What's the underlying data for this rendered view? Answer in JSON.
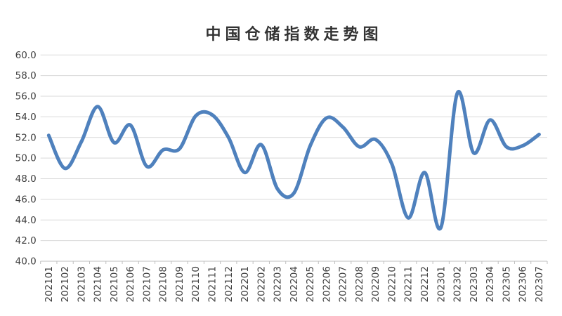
{
  "chart_data": {
    "type": "line",
    "title": "中国仓储指数走势图",
    "categories": [
      "202101",
      "202102",
      "202103",
      "202104",
      "202105",
      "202106",
      "202107",
      "202108",
      "202109",
      "202110",
      "202111",
      "202112",
      "202201",
      "202202",
      "202203",
      "202204",
      "202205",
      "202206",
      "202207",
      "202208",
      "202209",
      "202210",
      "202211",
      "202212",
      "202301",
      "202302",
      "202303",
      "202304",
      "202305",
      "202306",
      "202307"
    ],
    "values": [
      52.2,
      49.0,
      51.6,
      55.0,
      51.5,
      53.2,
      49.2,
      50.8,
      50.9,
      54.1,
      54.2,
      52.0,
      48.6,
      51.3,
      47.0,
      46.6,
      51.2,
      53.9,
      53.0,
      51.1,
      51.8,
      49.4,
      44.2,
      48.6,
      43.3,
      56.3,
      50.5,
      53.7,
      51.1,
      51.2,
      52.3
    ],
    "xlabel": "",
    "ylabel": "",
    "ylim": [
      40,
      60
    ],
    "ytick_step": 2,
    "ytick_labels": [
      "40.0",
      "42.0",
      "44.0",
      "46.0",
      "48.0",
      "50.0",
      "52.0",
      "54.0",
      "56.0",
      "58.0",
      "60.0"
    ],
    "grid": true,
    "legend_position": "none",
    "line_smooth": true,
    "colors": {
      "line": "#4F81BD",
      "grid": "#D9D9D9",
      "axis": "#BFBFBF",
      "tick_label": "#404040",
      "title": "#333333",
      "background": "#FFFFFF"
    }
  }
}
